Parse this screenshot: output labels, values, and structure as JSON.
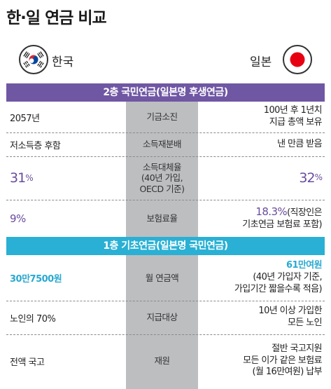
{
  "title": "한·일 연금 비교",
  "korea": {
    "name": "한국",
    "flag_icon": "korea-flag-icon"
  },
  "japan": {
    "name": "일본",
    "flag_icon": "japan-flag-icon"
  },
  "colors": {
    "purple": "#7057a4",
    "cyan": "#29b0d4",
    "gray": "#bcbec0"
  },
  "tier2": {
    "header": "2층 국민연금(일본명 후생연금)",
    "rows": [
      {
        "korea": "2057년",
        "item": "기금소진",
        "japan": "100년 후 1년치\n지급 총액 보유"
      },
      {
        "korea": "저소득층 후함",
        "item": "소득재분배",
        "japan": "낸 만큼 받음"
      },
      {
        "korea_value": "31",
        "korea_unit": "%",
        "item": "소득대체율\n(40년 가입,\nOECD 기준)",
        "japan_value": "32",
        "japan_unit": "%"
      },
      {
        "korea_value": "9",
        "korea_unit": "%",
        "item": "보험료율",
        "japan_value": "18.3",
        "japan_unit": "%",
        "japan_note_1": "(직장인은",
        "japan_note_2": "기초연금 보험료 포함)"
      }
    ]
  },
  "tier1": {
    "header": "1층 기초연금(일본명 국민연금)",
    "rows": [
      {
        "korea": "30만7500원",
        "item": "월 연금액",
        "japan_highlight": "61만여원",
        "japan": "(40년 가입자 기준,\n가입기간 짧을수록 적음)"
      },
      {
        "korea": "노인의 70%",
        "item": "지급대상",
        "japan": "10년 이상 가입한\n모든 노인"
      },
      {
        "korea": "전액 국고",
        "item": "재원",
        "japan": "절반 국고지원\n모든 이가 같은 보험료\n(월 16만여원) 납부"
      }
    ]
  }
}
